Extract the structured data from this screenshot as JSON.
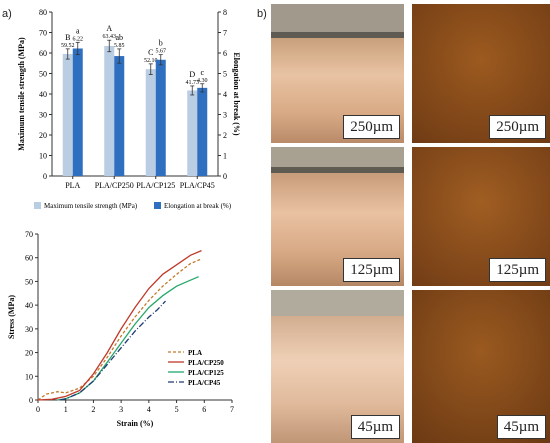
{
  "panel_a_label": "a)",
  "panel_b_label": "b)",
  "chart_data": [
    {
      "type": "bar",
      "categories": [
        "PLA",
        "PLA/CP250",
        "PLA/CP125",
        "PLA/CP45"
      ],
      "ylabel": "Maximum tensile strength (MPa)",
      "y2label": "Elongation at break (%)",
      "ylim": [
        0,
        80
      ],
      "y2lim": [
        0,
        8
      ],
      "yticks": [
        "0",
        "10",
        "20",
        "30",
        "40",
        "50",
        "60",
        "70",
        "80"
      ],
      "y2ticks": [
        "0",
        "1",
        "2",
        "3",
        "4",
        "5",
        "6",
        "7",
        "8"
      ],
      "series": [
        {
          "name": "Maximum tensile strength (MPa)",
          "axis": "left",
          "color": "#b9cde3",
          "values": [
            59.52,
            63.43,
            52.1,
            41.73
          ],
          "errors": [
            2.5,
            2.8,
            2.6,
            2.2
          ],
          "value_labels": [
            "59.52",
            "63.43",
            "52.10",
            "41.73"
          ],
          "letters": [
            "B",
            "A",
            "C",
            "D"
          ]
        },
        {
          "name": "Elongation at break (%)",
          "axis": "right",
          "color": "#2f6fbf",
          "values": [
            6.22,
            5.85,
            5.67,
            4.3
          ],
          "errors": [
            0.3,
            0.35,
            0.25,
            0.2
          ],
          "value_labels": [
            "6.22",
            "5.85",
            "5.67",
            "4.30"
          ],
          "letters": [
            "a",
            "ab",
            "b",
            "c"
          ]
        }
      ],
      "legend": "bottom",
      "grid": false
    },
    {
      "type": "line",
      "xlabel": "Strain (%)",
      "ylabel": "Stress (MPa)",
      "xlim": [
        0,
        7
      ],
      "ylim": [
        0,
        70
      ],
      "xticks": [
        "0",
        "1",
        "2",
        "3",
        "4",
        "5",
        "6",
        "7"
      ],
      "yticks": [
        "0",
        "10",
        "20",
        "30",
        "40",
        "50",
        "60",
        "70"
      ],
      "legend": "bottom-right",
      "grid": false,
      "series": [
        {
          "name": "PLA",
          "color": "#c47a2c",
          "dash": "3,2",
          "points": [
            [
              0,
              0
            ],
            [
              0.3,
              2.5
            ],
            [
              0.7,
              3.5
            ],
            [
              1.0,
              3.0
            ],
            [
              1.5,
              5
            ],
            [
              2.0,
              10
            ],
            [
              2.5,
              18
            ],
            [
              3.0,
              27
            ],
            [
              3.5,
              35
            ],
            [
              4.0,
              42
            ],
            [
              4.5,
              48
            ],
            [
              5.0,
              53
            ],
            [
              5.5,
              57.5
            ],
            [
              5.9,
              59.5
            ]
          ]
        },
        {
          "name": "PLA/CP250",
          "color": "#c0392b",
          "dash": "",
          "points": [
            [
              0,
              0
            ],
            [
              0.5,
              0.3
            ],
            [
              1.0,
              1.5
            ],
            [
              1.5,
              4
            ],
            [
              2.0,
              11
            ],
            [
              2.5,
              20
            ],
            [
              3.0,
              30
            ],
            [
              3.5,
              39
            ],
            [
              4.0,
              47
            ],
            [
              4.5,
              53
            ],
            [
              5.0,
              57
            ],
            [
              5.5,
              61
            ],
            [
              5.9,
              63
            ]
          ]
        },
        {
          "name": "PLA/CP125",
          "color": "#27a86b",
          "dash": "",
          "points": [
            [
              0.7,
              0
            ],
            [
              1.0,
              0.5
            ],
            [
              1.5,
              3
            ],
            [
              2.0,
              8
            ],
            [
              2.5,
              16
            ],
            [
              3.0,
              24
            ],
            [
              3.5,
              32
            ],
            [
              4.0,
              39
            ],
            [
              4.5,
              44
            ],
            [
              5.0,
              48
            ],
            [
              5.5,
              50.5
            ],
            [
              5.8,
              52
            ]
          ]
        },
        {
          "name": "PLA/CP45",
          "color": "#1f3b73",
          "dash": "6,2,1,2",
          "points": [
            [
              0.8,
              0
            ],
            [
              1.0,
              0.5
            ],
            [
              1.5,
              3
            ],
            [
              2.0,
              8
            ],
            [
              2.5,
              15
            ],
            [
              3.0,
              22
            ],
            [
              3.5,
              29
            ],
            [
              4.0,
              35
            ],
            [
              4.3,
              38
            ],
            [
              4.6,
              41.7
            ]
          ]
        }
      ]
    }
  ],
  "photos": [
    {
      "label": "250µm",
      "kind": "roll"
    },
    {
      "label": "250µm",
      "kind": "sheet"
    },
    {
      "label": "125µm",
      "kind": "roll"
    },
    {
      "label": "125µm",
      "kind": "sheet"
    },
    {
      "label": "45µm",
      "kind": "roll"
    },
    {
      "label": "45µm",
      "kind": "sheet"
    }
  ]
}
